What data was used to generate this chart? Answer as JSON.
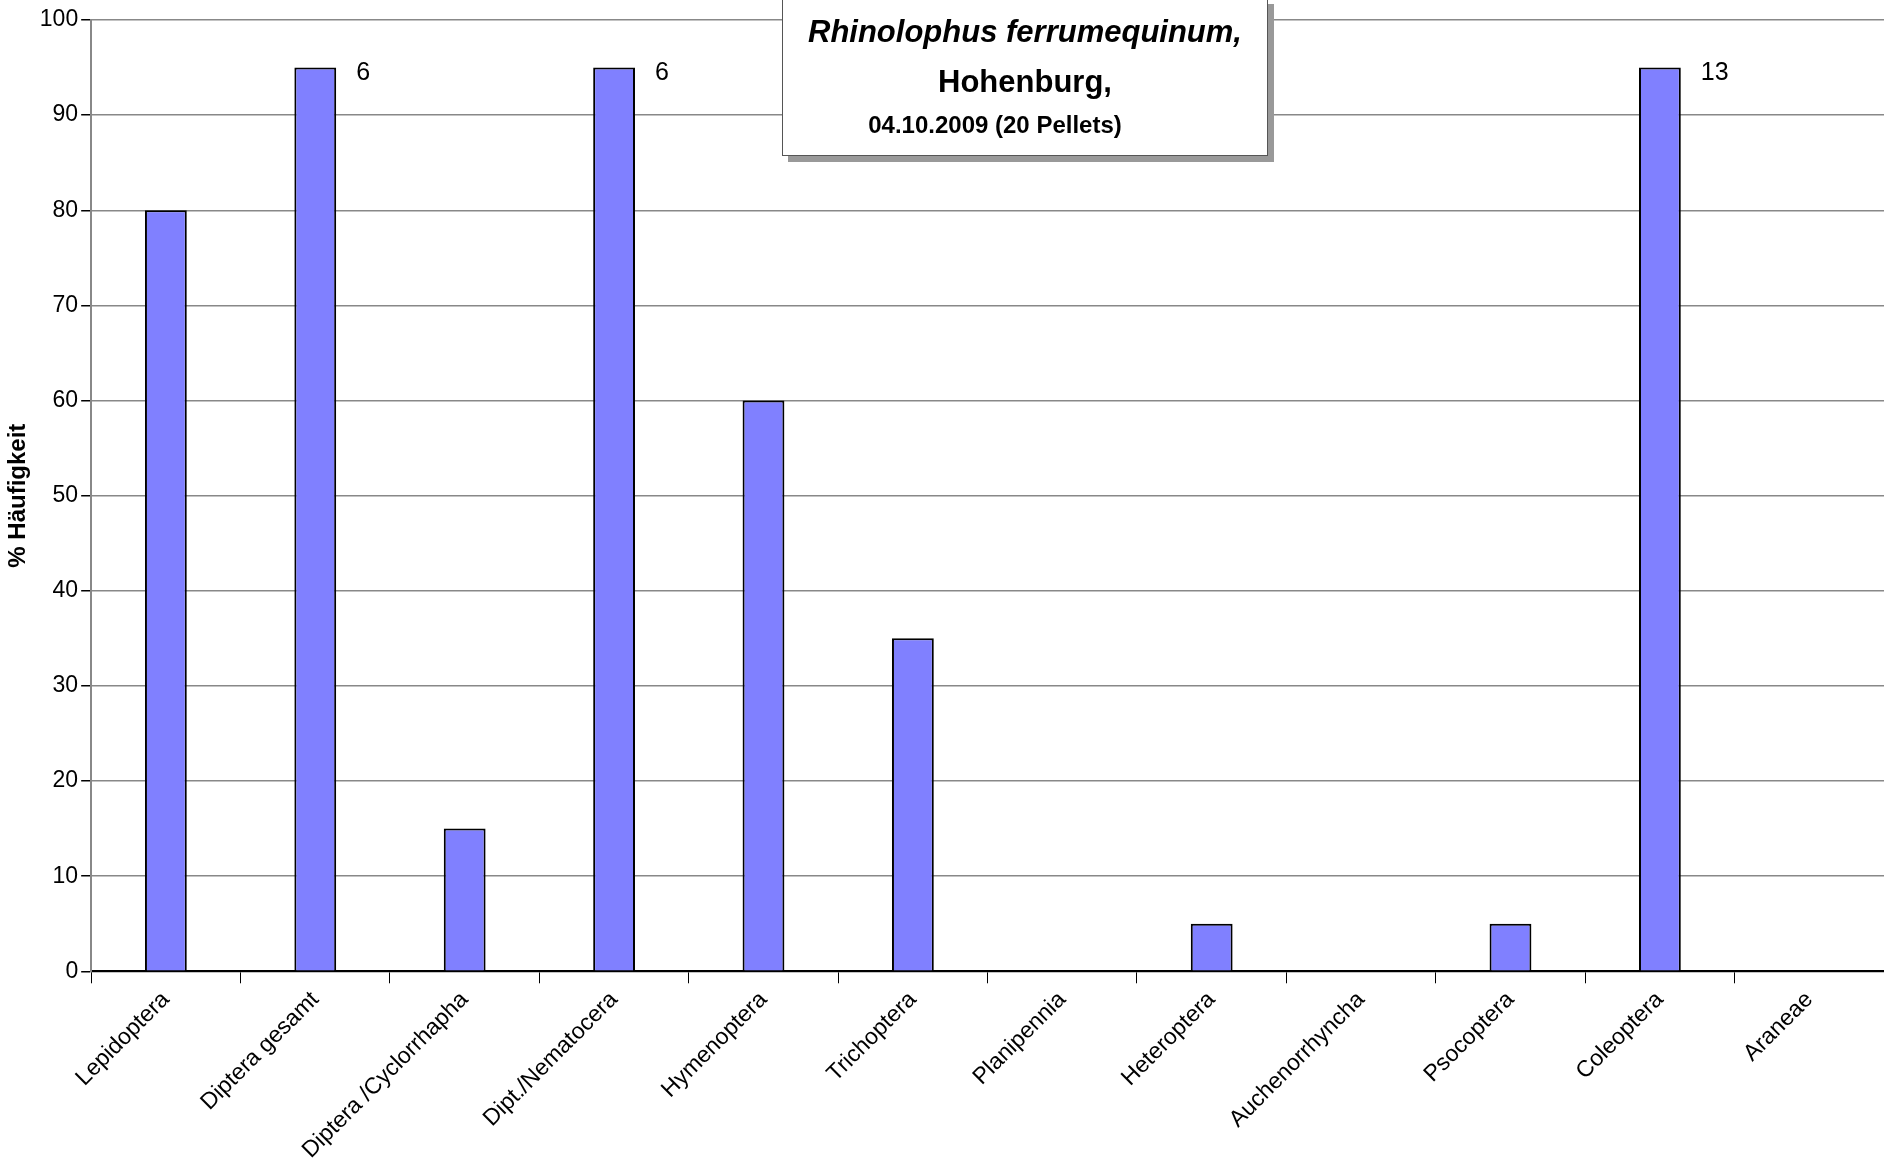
{
  "chart_data": {
    "type": "bar",
    "title": "Rhinolophus ferrumequinum,\nHohenburg,",
    "subtitle": "04.10.2009 (20 Pellets)",
    "ylabel": "% Häufigkeit",
    "categories": [
      "Lepidoptera",
      "Diptera gesamt",
      "Diptera /Cyclorrhapha",
      "Dipt./Nematocera",
      "Hymenoptera",
      "Trichoptera",
      "Planipennia",
      "Heteroptera",
      "Auchenorrhyncha",
      "Psocoptera",
      "Coleoptera",
      "Araneae"
    ],
    "values": [
      80,
      95,
      15,
      95,
      60,
      35,
      0,
      5,
      0,
      5,
      95,
      0
    ],
    "color": "#8080ff",
    "ylim": [
      0,
      100
    ],
    "yticks": [
      0,
      10,
      20,
      30,
      40,
      50,
      60,
      70,
      80,
      90,
      100
    ],
    "grid": "y",
    "legend": false,
    "annotations": [
      {
        "text": "6",
        "x": "Diptera gesamt",
        "y": 95
      },
      {
        "text": "6",
        "x": "Dipt./Nematocera",
        "y": 95
      },
      {
        "text": "13",
        "x": "Coleoptera",
        "y": 95
      }
    ]
  }
}
